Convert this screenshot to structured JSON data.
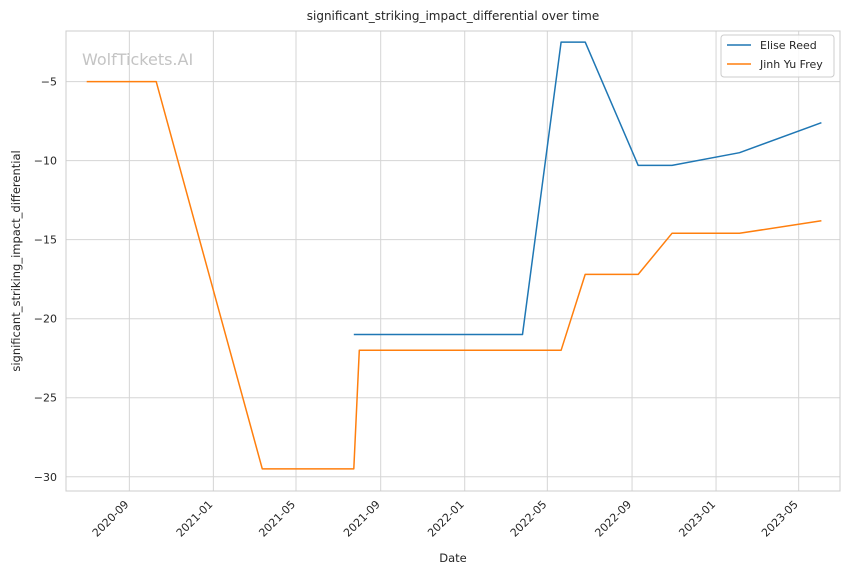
{
  "chart_data": {
    "type": "line",
    "title": "significant_striking_impact_differential over time",
    "xlabel": "Date",
    "ylabel": "significant_striking_impact_differential",
    "watermark": "WolfTickets.AI",
    "grid": true,
    "legend_position": "top-right",
    "x_range": [
      "2020-06-01",
      "2023-06-30"
    ],
    "ylim": [
      -30.9,
      -1.8
    ],
    "x_ticks": [
      "2020-09",
      "2021-01",
      "2021-05",
      "2021-09",
      "2022-01",
      "2022-05",
      "2022-09",
      "2023-01",
      "2023-05"
    ],
    "y_ticks": [
      -5,
      -10,
      -15,
      -20,
      -25,
      -30
    ],
    "series": [
      {
        "name": "Elise Reed",
        "color": "#1f77b4",
        "points": [
          {
            "x": "2021-07-24",
            "y": -21.0
          },
          {
            "x": "2022-03-26",
            "y": -21.0
          },
          {
            "x": "2022-05-21",
            "y": -2.5
          },
          {
            "x": "2022-06-25",
            "y": -2.5
          },
          {
            "x": "2022-09-10",
            "y": -10.3
          },
          {
            "x": "2022-10-29",
            "y": -10.3
          },
          {
            "x": "2023-02-04",
            "y": -9.5
          },
          {
            "x": "2023-06-03",
            "y": -7.6
          }
        ]
      },
      {
        "name": "Jinh Yu Frey",
        "color": "#ff7f0e",
        "points": [
          {
            "x": "2020-07-01",
            "y": -5.0
          },
          {
            "x": "2020-10-10",
            "y": -5.0
          },
          {
            "x": "2021-03-13",
            "y": -29.5
          },
          {
            "x": "2021-07-24",
            "y": -29.5
          },
          {
            "x": "2021-08-01",
            "y": -22.0
          },
          {
            "x": "2022-05-21",
            "y": -22.0
          },
          {
            "x": "2022-06-25",
            "y": -17.2
          },
          {
            "x": "2022-09-10",
            "y": -17.2
          },
          {
            "x": "2022-10-29",
            "y": -14.6
          },
          {
            "x": "2023-02-04",
            "y": -14.6
          },
          {
            "x": "2023-06-03",
            "y": -13.8
          }
        ]
      }
    ]
  }
}
